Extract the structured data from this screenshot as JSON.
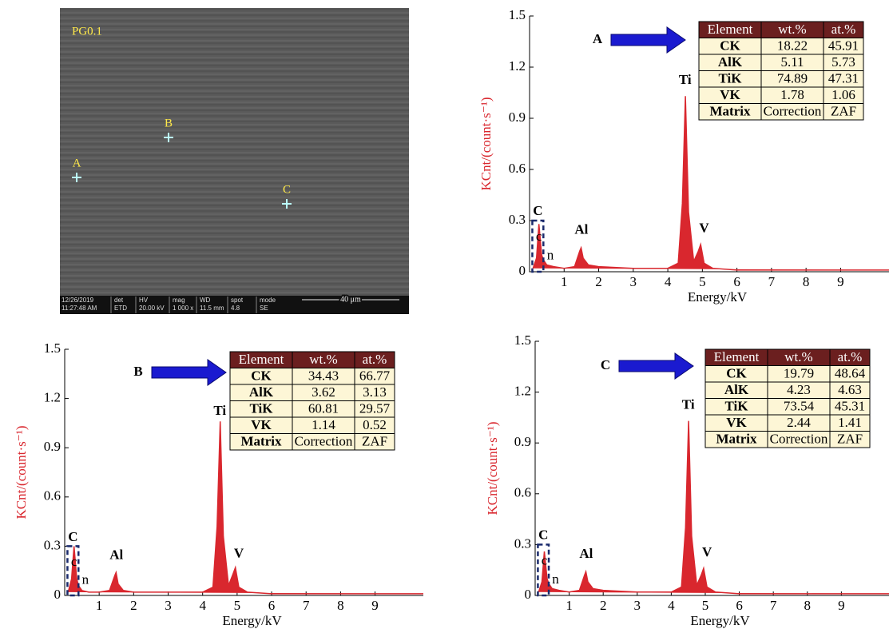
{
  "sem_image": {
    "label": "PG0.1",
    "points": [
      "A",
      "B",
      "C"
    ],
    "info": [
      [
        "12/26/2019",
        "11:27:48 AM"
      ],
      [
        "det",
        "ETD"
      ],
      [
        "HV",
        "20.00 kV"
      ],
      [
        "mag",
        "1 000 x"
      ],
      [
        "WD",
        "11.5 mm"
      ],
      [
        "spot",
        "4.8"
      ],
      [
        "mode",
        "SE"
      ]
    ],
    "scale_bar": "40 μm"
  },
  "chart_data": [
    {
      "type": "line",
      "arrow_label": "A",
      "xlabel": "Energy/kV",
      "ylabel": "KCnt/(count·s⁻¹)",
      "color": "#d9272e",
      "xlim": [
        0,
        10.4
      ],
      "xticks": [
        1,
        2,
        3,
        4,
        5,
        6,
        7,
        8,
        9
      ],
      "ylim": [
        0,
        1.5
      ],
      "yticks": [
        0,
        0.3,
        0.6,
        0.9,
        1.2,
        1.5
      ],
      "x": [
        0.1,
        0.2,
        0.27,
        0.35,
        0.4,
        0.5,
        0.7,
        1.0,
        1.3,
        1.45,
        1.49,
        1.55,
        1.7,
        2.0,
        3.0,
        4.0,
        4.3,
        4.42,
        4.51,
        4.6,
        4.75,
        4.88,
        4.95,
        5.05,
        5.3,
        6,
        7,
        8,
        9,
        10,
        10.4
      ],
      "values": [
        0.02,
        0.08,
        0.28,
        0.1,
        0.07,
        0.04,
        0.03,
        0.02,
        0.03,
        0.12,
        0.14,
        0.08,
        0.04,
        0.03,
        0.02,
        0.02,
        0.05,
        0.4,
        1.03,
        0.35,
        0.06,
        0.12,
        0.16,
        0.05,
        0.02,
        0.01,
        0.01,
        0.01,
        0.01,
        0.01,
        0.01
      ],
      "annotations": [
        "C",
        "c",
        "n",
        "Al",
        "Ti",
        "V"
      ],
      "table": {
        "header": [
          "Element",
          "wt.%",
          "at.%"
        ],
        "rows": [
          [
            "CK",
            18.22,
            45.91
          ],
          [
            "AlK",
            5.11,
            5.73
          ],
          [
            "TiK",
            74.89,
            47.31
          ],
          [
            "VK",
            1.78,
            1.06
          ],
          [
            "Matrix",
            "Correction",
            "ZAF"
          ]
        ]
      }
    },
    {
      "type": "line",
      "arrow_label": "B",
      "xlabel": "Energy/kV",
      "ylabel": "KCnt/(count·s⁻¹)",
      "color": "#d9272e",
      "xlim": [
        0,
        10.4
      ],
      "xticks": [
        1,
        2,
        3,
        4,
        5,
        6,
        7,
        8,
        9
      ],
      "ylim": [
        0,
        1.5
      ],
      "yticks": [
        0,
        0.3,
        0.6,
        0.9,
        1.2,
        1.5
      ],
      "x": [
        0.1,
        0.2,
        0.27,
        0.35,
        0.4,
        0.5,
        0.7,
        1.0,
        1.3,
        1.45,
        1.49,
        1.55,
        1.7,
        2.0,
        3.0,
        4.0,
        4.3,
        4.42,
        4.51,
        4.6,
        4.75,
        4.88,
        4.95,
        5.05,
        5.3,
        6,
        7,
        8,
        9,
        10,
        10.4
      ],
      "values": [
        0.02,
        0.1,
        0.3,
        0.1,
        0.06,
        0.03,
        0.02,
        0.02,
        0.03,
        0.12,
        0.14,
        0.07,
        0.03,
        0.02,
        0.02,
        0.02,
        0.05,
        0.42,
        1.06,
        0.36,
        0.06,
        0.13,
        0.17,
        0.05,
        0.02,
        0.01,
        0.01,
        0.01,
        0.01,
        0.01,
        0.01
      ],
      "annotations": [
        "C",
        "c",
        "n",
        "Al",
        "Ti",
        "V"
      ],
      "table": {
        "header": [
          "Element",
          "wt.%",
          "at.%"
        ],
        "rows": [
          [
            "CK",
            34.43,
            66.77
          ],
          [
            "AlK",
            3.62,
            3.13
          ],
          [
            "TiK",
            60.81,
            29.57
          ],
          [
            "VK",
            1.14,
            0.52
          ],
          [
            "Matrix",
            "Correction",
            "ZAF"
          ]
        ]
      }
    },
    {
      "type": "line",
      "arrow_label": "C",
      "xlabel": "Energy/kV",
      "ylabel": "KCnt/(count·s⁻¹)",
      "color": "#d9272e",
      "xlim": [
        0,
        10.4
      ],
      "xticks": [
        1,
        2,
        3,
        4,
        5,
        6,
        7,
        8,
        9
      ],
      "ylim": [
        0,
        1.5
      ],
      "yticks": [
        0,
        0.3,
        0.6,
        0.9,
        1.2,
        1.5
      ],
      "x": [
        0.1,
        0.2,
        0.27,
        0.35,
        0.4,
        0.5,
        0.7,
        1.0,
        1.3,
        1.45,
        1.49,
        1.55,
        1.7,
        2.0,
        3.0,
        4.0,
        4.3,
        4.42,
        4.51,
        4.6,
        4.75,
        4.88,
        4.95,
        5.05,
        5.3,
        6,
        7,
        8,
        9,
        10,
        10.4
      ],
      "values": [
        0.02,
        0.08,
        0.26,
        0.1,
        0.07,
        0.04,
        0.03,
        0.02,
        0.03,
        0.12,
        0.14,
        0.08,
        0.04,
        0.03,
        0.02,
        0.02,
        0.05,
        0.4,
        1.03,
        0.35,
        0.06,
        0.12,
        0.16,
        0.05,
        0.02,
        0.01,
        0.01,
        0.01,
        0.01,
        0.01,
        0.01
      ],
      "annotations": [
        "C",
        "c",
        "n",
        "Al",
        "Ti",
        "V"
      ],
      "table": {
        "header": [
          "Element",
          "wt.%",
          "at.%"
        ],
        "rows": [
          [
            "CK",
            19.79,
            48.64
          ],
          [
            "AlK",
            4.23,
            4.63
          ],
          [
            "TiK",
            73.54,
            45.31
          ],
          [
            "VK",
            2.44,
            1.41
          ],
          [
            "Matrix",
            "Correction",
            "ZAF"
          ]
        ]
      }
    }
  ]
}
